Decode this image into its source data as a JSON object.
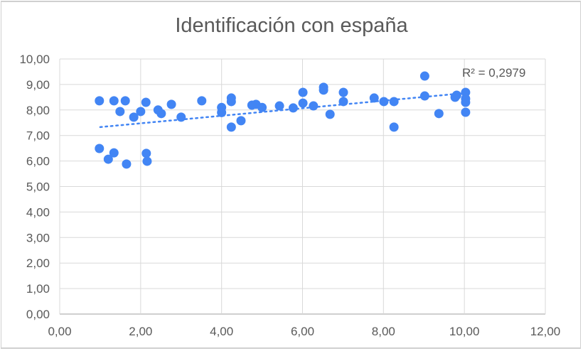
{
  "chart_data": {
    "type": "scatter",
    "title": "Identificación con españa",
    "xlabel": "",
    "ylabel": "",
    "xlim": [
      0,
      12
    ],
    "ylim": [
      0,
      10
    ],
    "x_ticks": [
      "0,00",
      "2,00",
      "4,00",
      "6,00",
      "8,00",
      "10,00",
      "12,00"
    ],
    "y_ticks": [
      "0,00",
      "1,00",
      "2,00",
      "3,00",
      "4,00",
      "5,00",
      "6,00",
      "7,00",
      "8,00",
      "9,00",
      "10,00"
    ],
    "grid": true,
    "legend": null,
    "marker_color": "#4285f4",
    "trendline": {
      "type": "linear",
      "style": "dotted",
      "x": [
        1.0,
        10.0
      ],
      "y": [
        7.33,
        8.66
      ],
      "r2_label": "R² = 0,2979"
    },
    "series": [
      {
        "name": "Identificación con españa",
        "points": [
          [
            0.98,
            8.36
          ],
          [
            1.34,
            8.36
          ],
          [
            1.62,
            8.36
          ],
          [
            2.13,
            8.3
          ],
          [
            1.49,
            7.94
          ],
          [
            2.0,
            7.94
          ],
          [
            1.83,
            7.72
          ],
          [
            2.43,
            8.0
          ],
          [
            2.51,
            7.86
          ],
          [
            2.76,
            8.22
          ],
          [
            3.0,
            7.72
          ],
          [
            3.51,
            8.36
          ],
          [
            0.98,
            6.49
          ],
          [
            1.34,
            6.32
          ],
          [
            1.2,
            6.07
          ],
          [
            1.65,
            5.88
          ],
          [
            2.14,
            6.3
          ],
          [
            2.16,
            5.99
          ],
          [
            4.0,
            8.1
          ],
          [
            4.0,
            7.9
          ],
          [
            4.24,
            8.47
          ],
          [
            4.24,
            8.33
          ],
          [
            4.24,
            7.33
          ],
          [
            4.48,
            7.58
          ],
          [
            4.75,
            8.19
          ],
          [
            4.85,
            8.22
          ],
          [
            5.0,
            8.1
          ],
          [
            5.43,
            8.16
          ],
          [
            5.77,
            8.08
          ],
          [
            6.01,
            8.69
          ],
          [
            6.01,
            8.27
          ],
          [
            6.27,
            8.16
          ],
          [
            6.52,
            8.89
          ],
          [
            6.52,
            8.78
          ],
          [
            6.68,
            7.83
          ],
          [
            7.01,
            8.69
          ],
          [
            7.01,
            8.33
          ],
          [
            7.77,
            8.47
          ],
          [
            8.01,
            8.33
          ],
          [
            8.26,
            8.33
          ],
          [
            8.26,
            7.33
          ],
          [
            9.02,
            9.33
          ],
          [
            9.02,
            8.55
          ],
          [
            9.37,
            7.86
          ],
          [
            9.77,
            8.5
          ],
          [
            9.81,
            8.58
          ],
          [
            10.03,
            8.69
          ],
          [
            10.03,
            8.44
          ],
          [
            10.03,
            8.3
          ],
          [
            10.03,
            7.91
          ]
        ]
      }
    ]
  }
}
